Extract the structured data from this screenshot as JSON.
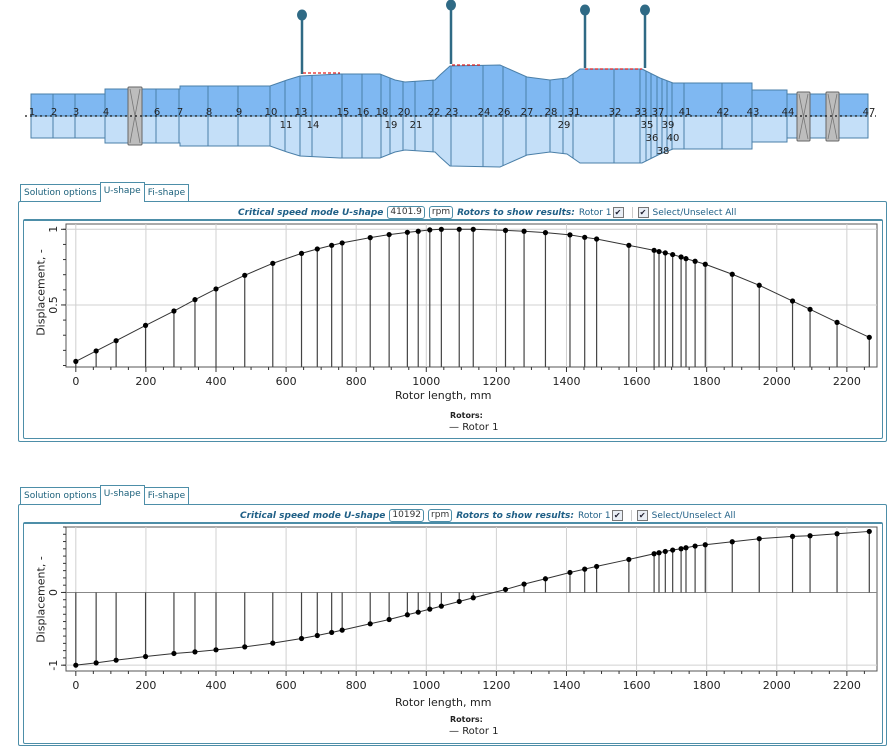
{
  "rotor_diagram": {
    "station_labels": [
      "1",
      "2",
      "3",
      "4",
      "6",
      "7",
      "8",
      "9",
      "10",
      "11",
      "13",
      "14",
      "15",
      "16",
      "18",
      "19",
      "20",
      "21",
      "22",
      "23",
      "24",
      "26",
      "27",
      "28",
      "29",
      "31",
      "32",
      "33",
      "35",
      "36",
      "37",
      "38",
      "39",
      "40",
      "41",
      "42",
      "43",
      "44",
      "47"
    ],
    "colors": {
      "upper": "#7fb8f2",
      "lower": "#c4dff8",
      "edge": "#4a7fa8",
      "bearing": "#bdbdbd",
      "disk": "#2f6a85",
      "contact": "#e02020"
    }
  },
  "panels": [
    {
      "tabs": [
        {
          "label": "Solution options"
        },
        {
          "label": "U-shape",
          "active": true
        },
        {
          "label": "Fi-shape"
        }
      ],
      "header": {
        "mode_label": "Critical speed mode U-shape",
        "speed": "4101.9",
        "unit": "rpm",
        "rotors_label": "Rotors to show results:",
        "rotor": "Rotor 1",
        "rotor_checked": true,
        "select_all": "Select/Unselect All",
        "select_all_checked": true
      },
      "legend": {
        "title": "Rotors:",
        "item": "Rotor 1"
      }
    },
    {
      "tabs": [
        {
          "label": "Solution options"
        },
        {
          "label": "U-shape",
          "active": true
        },
        {
          "label": "Fi-shape"
        }
      ],
      "header": {
        "mode_label": "Critical speed mode U-shape",
        "speed": "10192",
        "unit": "rpm",
        "rotors_label": "Rotors to show results:",
        "rotor": "Rotor 1",
        "rotor_checked": true,
        "select_all": "Select/Unselect All",
        "select_all_checked": true
      },
      "legend": {
        "title": "Rotors:",
        "item": "Rotor 1"
      }
    }
  ],
  "chart_data": [
    {
      "type": "line",
      "xlabel": "Rotor length, mm",
      "ylabel": "Displacement, -",
      "xlim": [
        -28,
        2286
      ],
      "ylim": [
        0.09,
        1.035
      ],
      "xticks": [
        0,
        200,
        400,
        600,
        800,
        1000,
        1200,
        1400,
        1600,
        1800,
        2000,
        2200
      ],
      "xtick_labels": [
        "0",
        "200",
        "400",
        "600",
        "800",
        "1000",
        "1200",
        "1400",
        "1600",
        "1800",
        "2000",
        "2200"
      ],
      "yticks": [
        0.5,
        1
      ],
      "ytick_labels": [
        "0.5",
        "1"
      ],
      "stem_baseline": 0.09,
      "grid": true,
      "legend": "bottom",
      "series": [
        {
          "name": "Rotor 1",
          "x": [
            0,
            58,
            115,
            199,
            280,
            340,
            400,
            482,
            562,
            644,
            689,
            730,
            760,
            840,
            894,
            946,
            977,
            1010,
            1043,
            1094,
            1134,
            1226,
            1279,
            1340,
            1410,
            1452,
            1486,
            1578,
            1650,
            1664,
            1682,
            1703,
            1727,
            1741,
            1767,
            1796,
            1873,
            1950,
            2045,
            2095,
            2172,
            2264
          ],
          "y": [
            0.127,
            0.196,
            0.264,
            0.365,
            0.46,
            0.535,
            0.606,
            0.696,
            0.775,
            0.841,
            0.87,
            0.894,
            0.91,
            0.945,
            0.965,
            0.98,
            0.987,
            0.996,
            1.0,
            1.0,
            1.0,
            0.993,
            0.987,
            0.978,
            0.963,
            0.947,
            0.936,
            0.894,
            0.861,
            0.853,
            0.844,
            0.833,
            0.817,
            0.806,
            0.789,
            0.769,
            0.703,
            0.63,
            0.526,
            0.471,
            0.385,
            0.286
          ]
        }
      ]
    },
    {
      "type": "line",
      "xlabel": "Rotor length, mm",
      "ylabel": "Displacement, -",
      "xlim": [
        -28,
        2286
      ],
      "ylim": [
        -1.08,
        0.9
      ],
      "xticks": [
        0,
        200,
        400,
        600,
        800,
        1000,
        1200,
        1400,
        1600,
        1800,
        2000,
        2200
      ],
      "xtick_labels": [
        "0",
        "200",
        "400",
        "600",
        "800",
        "1000",
        "1200",
        "1400",
        "1600",
        "1800",
        "2000",
        "2200"
      ],
      "yticks": [
        -1,
        0
      ],
      "ytick_labels": [
        "-1",
        "0"
      ],
      "stem_baseline": 0,
      "grid": true,
      "legend": "bottom",
      "series": [
        {
          "name": "Rotor 1",
          "x": [
            0,
            58,
            115,
            199,
            280,
            340,
            400,
            482,
            562,
            644,
            689,
            730,
            760,
            840,
            894,
            946,
            977,
            1010,
            1043,
            1094,
            1134,
            1226,
            1279,
            1340,
            1410,
            1452,
            1486,
            1578,
            1650,
            1664,
            1682,
            1703,
            1727,
            1741,
            1767,
            1796,
            1873,
            1950,
            2045,
            2095,
            2172,
            2264
          ],
          "y": [
            -1.0,
            -0.968,
            -0.931,
            -0.881,
            -0.839,
            -0.817,
            -0.789,
            -0.748,
            -0.697,
            -0.633,
            -0.592,
            -0.55,
            -0.518,
            -0.431,
            -0.372,
            -0.307,
            -0.271,
            -0.229,
            -0.188,
            -0.124,
            -0.073,
            0.041,
            0.115,
            0.188,
            0.275,
            0.321,
            0.358,
            0.454,
            0.532,
            0.546,
            0.564,
            0.583,
            0.601,
            0.615,
            0.638,
            0.656,
            0.697,
            0.739,
            0.771,
            0.78,
            0.807,
            0.839
          ]
        }
      ]
    }
  ]
}
